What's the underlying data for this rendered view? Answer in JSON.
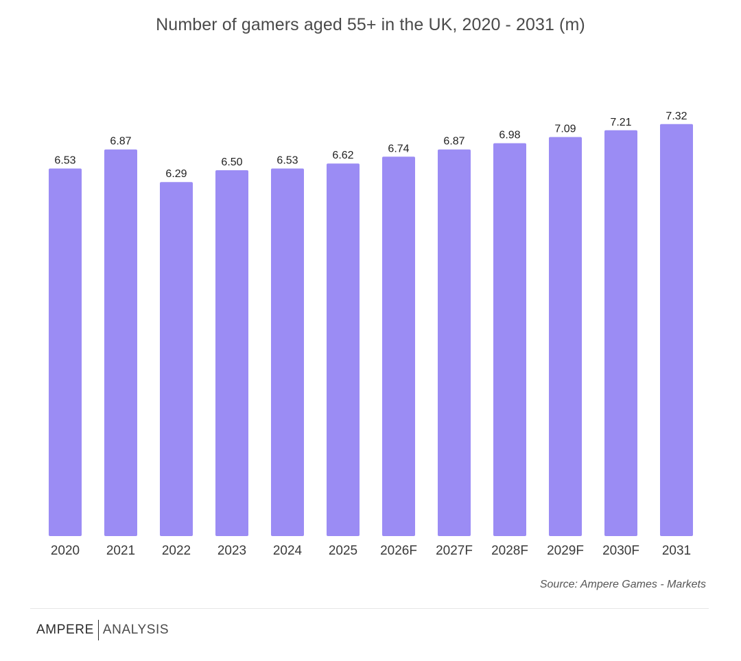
{
  "colors": {
    "bar": "#9b8cf4",
    "title": "#4a4a4a",
    "label": "#1f1f1f",
    "axis_text": "#3a3a3a",
    "source": "#555555"
  },
  "chart_data": {
    "type": "bar",
    "title": "Number of gamers aged 55+ in the UK, 2020 - 2031 (m)",
    "categories": [
      "2020",
      "2021",
      "2022",
      "2023",
      "2024",
      "2025",
      "2026F",
      "2027F",
      "2028F",
      "2029F",
      "2030F",
      "2031"
    ],
    "values": [
      6.53,
      6.87,
      6.29,
      6.5,
      6.53,
      6.62,
      6.74,
      6.87,
      6.98,
      7.09,
      7.21,
      7.32
    ],
    "value_labels": [
      "6.53",
      "6.87",
      "6.29",
      "6.50",
      "6.53",
      "6.62",
      "6.74",
      "6.87",
      "6.98",
      "7.09",
      "7.21",
      "7.32"
    ],
    "xlabel": "",
    "ylabel": "",
    "grid": false,
    "legend": "none"
  },
  "source": "Source:  Ampere Games - Markets",
  "brand": {
    "first": "AMPERE",
    "second": "ANALYSIS"
  }
}
